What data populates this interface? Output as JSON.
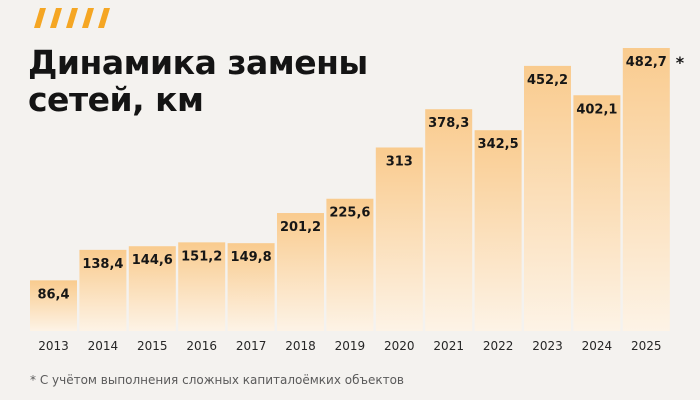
{
  "title": {
    "line1": "Динамика замены",
    "line2": "сетей, км"
  },
  "footnote": "* С учётом выполнения сложных капиталоёмких объектов",
  "colors": {
    "accent": "#f5a623",
    "bar_top": "#f9cb8e",
    "bar_bottom": "#fdf3e6",
    "text": "#161616"
  },
  "chart_data": {
    "type": "bar",
    "title": "Динамика замены сетей, км",
    "xlabel": "",
    "ylabel": "",
    "categories": [
      "2013",
      "2014",
      "2015",
      "2016",
      "2017",
      "2018",
      "2019",
      "2020",
      "2021",
      "2022",
      "2023",
      "2024",
      "2025"
    ],
    "values": [
      86.4,
      138.4,
      144.6,
      151.2,
      149.8,
      201.2,
      225.6,
      313,
      378.3,
      342.5,
      452.2,
      402.1,
      482.7
    ],
    "value_labels": [
      "86,4",
      "138,4",
      "144,6",
      "151,2",
      "149,8",
      "201,2",
      "225,6",
      "313",
      "378,3",
      "342,5",
      "452,2",
      "402,1",
      "482,7"
    ],
    "annotations": [
      {
        "category": "2025",
        "text": "*"
      }
    ],
    "ylim": [
      0,
      482.7
    ],
    "grid": false,
    "legend": "none"
  }
}
